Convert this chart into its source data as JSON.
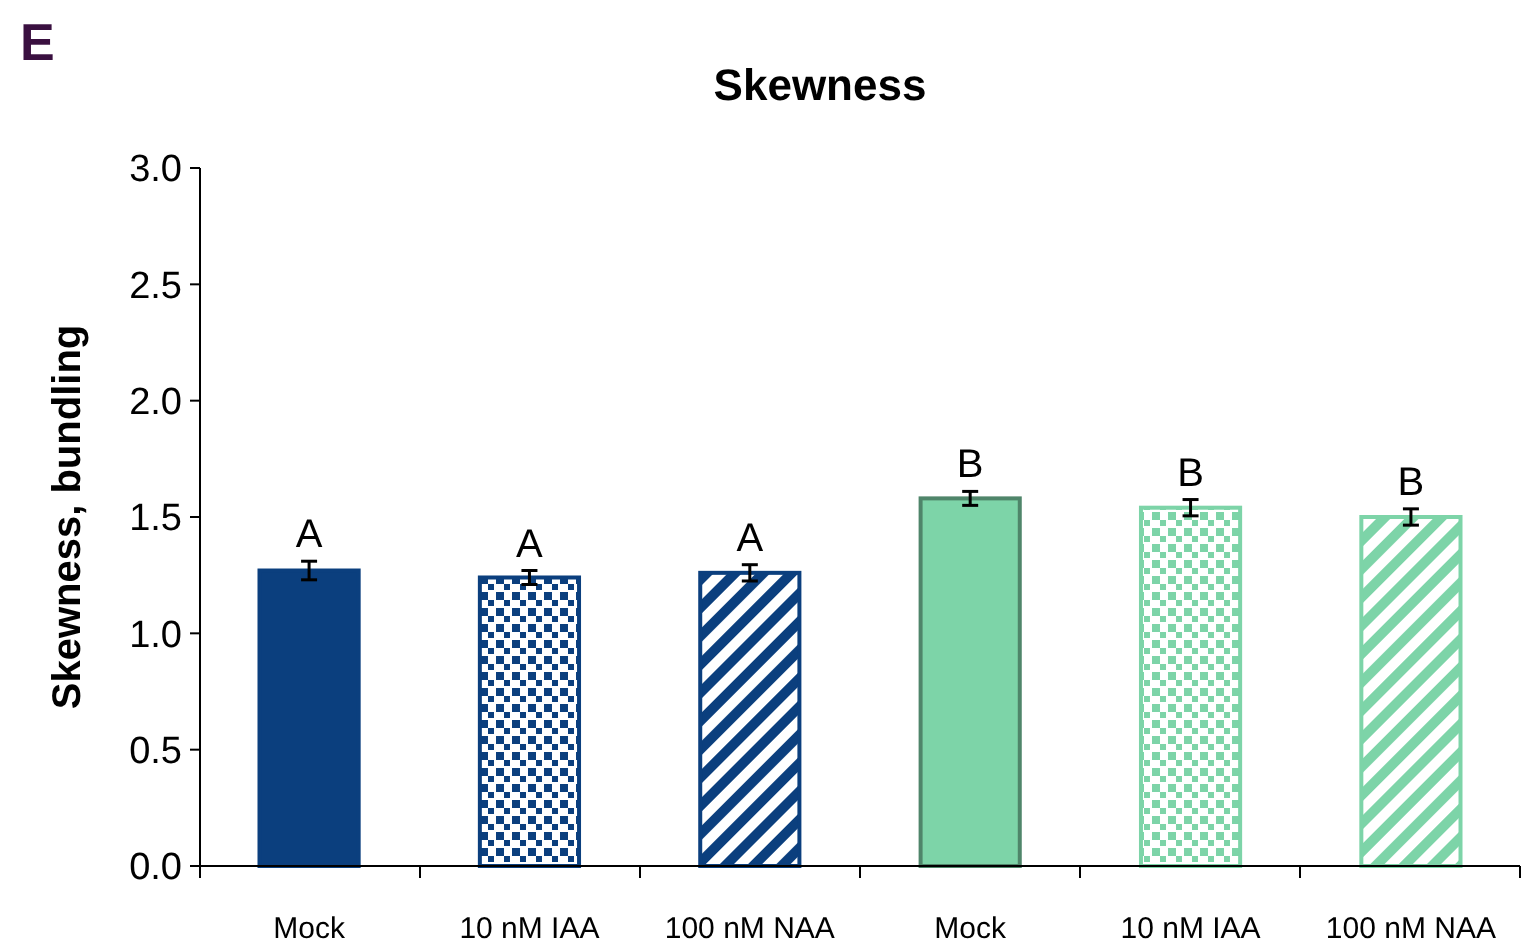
{
  "chart_data": {
    "type": "bar",
    "title": "Skewness",
    "ylabel": "Skewness, bundling",
    "categories": [
      "Mock",
      "10 nM IAA",
      "100 nM NAA",
      "Mock",
      "10 nM IAA",
      "100 nM NAA"
    ],
    "values": [
      1.27,
      1.24,
      1.26,
      1.58,
      1.54,
      1.5
    ],
    "errors": [
      0.04,
      0.03,
      0.035,
      0.03,
      0.035,
      0.035
    ],
    "colors": [
      "#0b3f7e",
      "#0b3f7e",
      "#0b3f7e",
      "#7dd4a8",
      "#7dd4a8",
      "#7dd4a8"
    ],
    "value_labels": [
      "A",
      "A",
      "A",
      "B",
      "B",
      "B"
    ],
    "annotations": [
      "E"
    ],
    "ylim": [
      0,
      3
    ],
    "yticks": [
      {
        "value": 0,
        "label": "0.0"
      },
      {
        "value": 0.5,
        "label": "0.5"
      },
      {
        "value": 1,
        "label": "1.0"
      },
      {
        "value": 1.5,
        "label": "1.5"
      },
      {
        "value": 2,
        "label": "2.0"
      },
      {
        "value": 2.5,
        "label": "2.5"
      },
      {
        "value": 3,
        "label": "3.0"
      }
    ],
    "grid": false
  }
}
